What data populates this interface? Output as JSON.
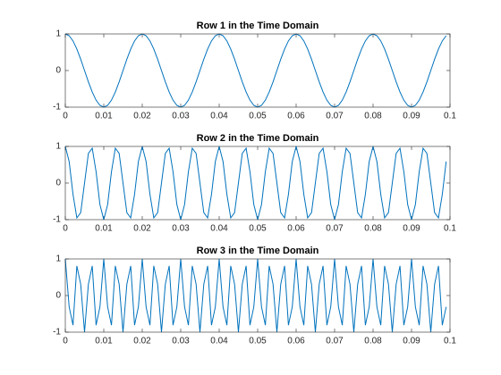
{
  "chart_data": [
    {
      "type": "line",
      "title": "Row 1 in the Time Domain",
      "color": "#0072bd",
      "x": [
        0,
        0.001,
        0.002,
        0.003,
        0.004,
        0.005,
        0.006,
        0.007,
        0.008,
        0.009,
        0.01,
        0.011,
        0.012,
        0.013,
        0.014,
        0.015,
        0.016,
        0.017,
        0.018,
        0.019,
        0.02,
        0.021,
        0.022,
        0.023,
        0.024,
        0.025,
        0.026,
        0.027,
        0.028,
        0.029,
        0.03,
        0.031,
        0.032,
        0.033,
        0.034,
        0.035,
        0.036,
        0.037,
        0.038,
        0.039,
        0.04,
        0.041,
        0.042,
        0.043,
        0.044,
        0.045,
        0.046,
        0.047,
        0.048,
        0.049,
        0.05,
        0.051,
        0.052,
        0.053,
        0.054,
        0.055,
        0.056,
        0.057,
        0.058,
        0.059,
        0.06,
        0.061,
        0.062,
        0.063,
        0.064,
        0.065,
        0.066,
        0.067,
        0.068,
        0.069,
        0.07,
        0.071,
        0.072,
        0.073,
        0.074,
        0.075,
        0.076,
        0.077,
        0.078,
        0.079,
        0.08,
        0.081,
        0.082,
        0.083,
        0.084,
        0.085,
        0.086,
        0.087,
        0.088,
        0.089,
        0.09,
        0.091,
        0.092,
        0.093,
        0.094,
        0.095,
        0.096,
        0.097,
        0.098,
        0.099
      ],
      "values": [
        1,
        0.951,
        0.809,
        0.588,
        0.309,
        0,
        -0.309,
        -0.588,
        -0.809,
        -0.951,
        -1,
        -0.951,
        -0.809,
        -0.588,
        -0.309,
        0,
        0.309,
        0.588,
        0.809,
        0.951,
        1,
        0.951,
        0.809,
        0.588,
        0.309,
        0,
        -0.309,
        -0.588,
        -0.809,
        -0.951,
        -1,
        -0.951,
        -0.809,
        -0.588,
        -0.309,
        0,
        0.309,
        0.588,
        0.809,
        0.951,
        1,
        0.951,
        0.809,
        0.588,
        0.309,
        0,
        -0.309,
        -0.588,
        -0.809,
        -0.951,
        -1,
        -0.951,
        -0.809,
        -0.588,
        -0.309,
        0,
        0.309,
        0.588,
        0.809,
        0.951,
        1,
        0.951,
        0.809,
        0.588,
        0.309,
        0,
        -0.309,
        -0.588,
        -0.809,
        -0.951,
        -1,
        -0.951,
        -0.809,
        -0.588,
        -0.309,
        0,
        0.309,
        0.588,
        0.809,
        0.951,
        1,
        0.951,
        0.809,
        0.588,
        0.309,
        0,
        -0.309,
        -0.588,
        -0.809,
        -0.951,
        -1,
        -0.951,
        -0.809,
        -0.588,
        -0.309,
        0,
        0.309,
        0.588,
        0.809,
        0.951
      ],
      "xlim": [
        0,
        0.1
      ],
      "xticks": [
        0,
        0.01,
        0.02,
        0.03,
        0.04,
        0.05,
        0.06,
        0.07,
        0.08,
        0.09,
        0.1
      ],
      "ylim": [
        -1,
        1
      ],
      "yticks": [
        -1,
        0,
        1
      ]
    },
    {
      "type": "line",
      "title": "Row 2 in the Time Domain",
      "color": "#0072bd",
      "x": [
        0,
        0.001,
        0.002,
        0.003,
        0.004,
        0.005,
        0.006,
        0.007,
        0.008,
        0.009,
        0.01,
        0.011,
        0.012,
        0.013,
        0.014,
        0.015,
        0.016,
        0.017,
        0.018,
        0.019,
        0.02,
        0.021,
        0.022,
        0.023,
        0.024,
        0.025,
        0.026,
        0.027,
        0.028,
        0.029,
        0.03,
        0.031,
        0.032,
        0.033,
        0.034,
        0.035,
        0.036,
        0.037,
        0.038,
        0.039,
        0.04,
        0.041,
        0.042,
        0.043,
        0.044,
        0.045,
        0.046,
        0.047,
        0.048,
        0.049,
        0.05,
        0.051,
        0.052,
        0.053,
        0.054,
        0.055,
        0.056,
        0.057,
        0.058,
        0.059,
        0.06,
        0.061,
        0.062,
        0.063,
        0.064,
        0.065,
        0.066,
        0.067,
        0.068,
        0.069,
        0.07,
        0.071,
        0.072,
        0.073,
        0.074,
        0.075,
        0.076,
        0.077,
        0.078,
        0.079,
        0.08,
        0.081,
        0.082,
        0.083,
        0.084,
        0.085,
        0.086,
        0.087,
        0.088,
        0.089,
        0.09,
        0.091,
        0.092,
        0.093,
        0.094,
        0.095,
        0.096,
        0.097,
        0.098,
        0.099
      ],
      "values": [
        1,
        0.588,
        -0.309,
        -0.951,
        -0.809,
        0,
        0.809,
        0.951,
        0.309,
        -0.588,
        -1,
        -0.588,
        0.309,
        0.951,
        0.809,
        0,
        -0.809,
        -0.951,
        -0.309,
        0.588,
        1,
        0.588,
        -0.309,
        -0.951,
        -0.809,
        0,
        0.809,
        0.951,
        0.309,
        -0.588,
        -1,
        -0.588,
        0.309,
        0.951,
        0.809,
        0,
        -0.809,
        -0.951,
        -0.309,
        0.588,
        1,
        0.588,
        -0.309,
        -0.951,
        -0.809,
        0,
        0.809,
        0.951,
        0.309,
        -0.588,
        -1,
        -0.588,
        0.309,
        0.951,
        0.809,
        0,
        -0.809,
        -0.951,
        -0.309,
        0.588,
        1,
        0.588,
        -0.309,
        -0.951,
        -0.809,
        0,
        0.809,
        0.951,
        0.309,
        -0.588,
        -1,
        -0.588,
        0.309,
        0.951,
        0.809,
        0,
        -0.809,
        -0.951,
        -0.309,
        0.588,
        1,
        0.588,
        -0.309,
        -0.951,
        -0.809,
        0,
        0.809,
        0.951,
        0.309,
        -0.588,
        -1,
        -0.588,
        0.309,
        0.951,
        0.809,
        0,
        -0.809,
        -0.951,
        -0.309,
        0.588
      ],
      "xlim": [
        0,
        0.1
      ],
      "xticks": [
        0,
        0.01,
        0.02,
        0.03,
        0.04,
        0.05,
        0.06,
        0.07,
        0.08,
        0.09,
        0.1
      ],
      "ylim": [
        -1,
        1
      ],
      "yticks": [
        -1,
        0,
        1
      ]
    },
    {
      "type": "line",
      "title": "Row 3 in the Time Domain",
      "color": "#0072bd",
      "x": [
        0,
        0.001,
        0.002,
        0.003,
        0.004,
        0.005,
        0.006,
        0.007,
        0.008,
        0.009,
        0.01,
        0.011,
        0.012,
        0.013,
        0.014,
        0.015,
        0.016,
        0.017,
        0.018,
        0.019,
        0.02,
        0.021,
        0.022,
        0.023,
        0.024,
        0.025,
        0.026,
        0.027,
        0.028,
        0.029,
        0.03,
        0.031,
        0.032,
        0.033,
        0.034,
        0.035,
        0.036,
        0.037,
        0.038,
        0.039,
        0.04,
        0.041,
        0.042,
        0.043,
        0.044,
        0.045,
        0.046,
        0.047,
        0.048,
        0.049,
        0.05,
        0.051,
        0.052,
        0.053,
        0.054,
        0.055,
        0.056,
        0.057,
        0.058,
        0.059,
        0.06,
        0.061,
        0.062,
        0.063,
        0.064,
        0.065,
        0.066,
        0.067,
        0.068,
        0.069,
        0.07,
        0.071,
        0.072,
        0.073,
        0.074,
        0.075,
        0.076,
        0.077,
        0.078,
        0.079,
        0.08,
        0.081,
        0.082,
        0.083,
        0.084,
        0.085,
        0.086,
        0.087,
        0.088,
        0.089,
        0.09,
        0.091,
        0.092,
        0.093,
        0.094,
        0.095,
        0.096,
        0.097,
        0.098,
        0.099
      ],
      "values": [
        1,
        -0.309,
        -0.809,
        0.809,
        0.309,
        -1,
        0.309,
        0.809,
        -0.809,
        -0.309,
        1,
        -0.309,
        -0.809,
        0.809,
        0.309,
        -1,
        0.309,
        0.809,
        -0.809,
        -0.309,
        1,
        -0.309,
        -0.809,
        0.809,
        0.309,
        -1,
        0.309,
        0.809,
        -0.809,
        -0.309,
        1,
        -0.309,
        -0.809,
        0.809,
        0.309,
        -1,
        0.309,
        0.809,
        -0.809,
        -0.309,
        1,
        -0.309,
        -0.809,
        0.809,
        0.309,
        -1,
        0.309,
        0.809,
        -0.809,
        -0.309,
        1,
        -0.309,
        -0.809,
        0.809,
        0.309,
        -1,
        0.309,
        0.809,
        -0.809,
        -0.309,
        1,
        -0.309,
        -0.809,
        0.809,
        0.309,
        -1,
        0.309,
        0.809,
        -0.809,
        -0.309,
        1,
        -0.309,
        -0.809,
        0.809,
        0.309,
        -1,
        0.309,
        0.809,
        -0.809,
        -0.309,
        1,
        -0.309,
        -0.809,
        0.809,
        0.309,
        -1,
        0.309,
        0.809,
        -0.809,
        -0.309,
        1,
        -0.309,
        -0.809,
        0.809,
        0.309,
        -1,
        0.309,
        0.809,
        -0.809,
        -0.309
      ],
      "xlim": [
        0,
        0.1
      ],
      "xticks": [
        0,
        0.01,
        0.02,
        0.03,
        0.04,
        0.05,
        0.06,
        0.07,
        0.08,
        0.09,
        0.1
      ],
      "ylim": [
        -1,
        1
      ],
      "yticks": [
        -1,
        0,
        1
      ]
    }
  ]
}
